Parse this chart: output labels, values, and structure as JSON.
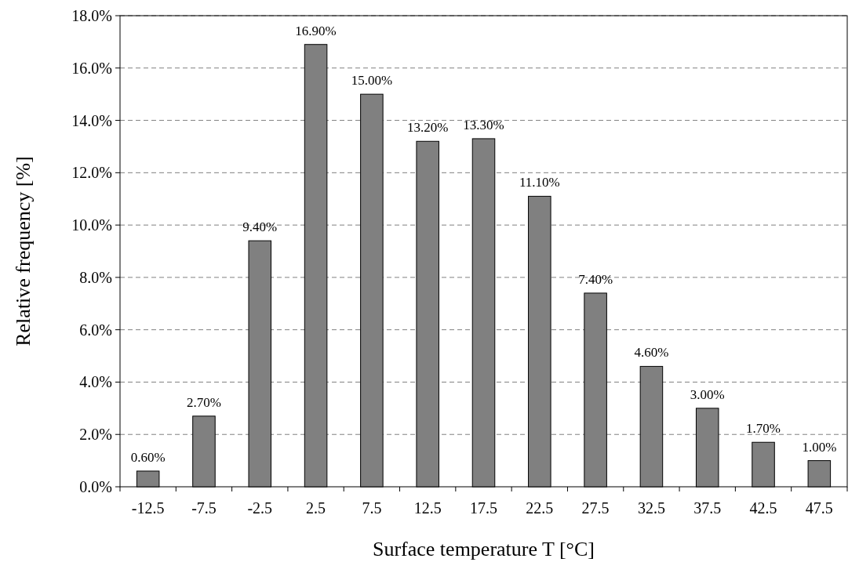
{
  "chart_data": {
    "type": "bar",
    "xlabel": "Surface temperature T [°C]",
    "ylabel": "Relative frequency [%]",
    "categories": [
      "-12.5",
      "-7.5",
      "-2.5",
      "2.5",
      "7.5",
      "12.5",
      "17.5",
      "22.5",
      "27.5",
      "32.5",
      "37.5",
      "42.5",
      "47.5"
    ],
    "values": [
      0.6,
      2.7,
      9.4,
      16.9,
      15.0,
      13.2,
      13.3,
      11.1,
      7.4,
      4.6,
      3.0,
      1.7,
      1.0
    ],
    "value_labels": [
      "0.60%",
      "2.70%",
      "9.40%",
      "16.90%",
      "15.00%",
      "13.20%",
      "13.30%",
      "11.10%",
      "7.40%",
      "4.60%",
      "3.00%",
      "1.70%",
      "1.00%"
    ],
    "color": "#808080",
    "ylim": [
      0,
      18
    ],
    "yticks": [
      {
        "value": 0,
        "label": "0.0%"
      },
      {
        "value": 2,
        "label": "2.0%"
      },
      {
        "value": 4,
        "label": "4.0%"
      },
      {
        "value": 6,
        "label": "6.0%"
      },
      {
        "value": 8,
        "label": "8.0%"
      },
      {
        "value": 10,
        "label": "10.0%"
      },
      {
        "value": 12,
        "label": "12.0%"
      },
      {
        "value": 14,
        "label": "14.0%"
      },
      {
        "value": 16,
        "label": "16.0%"
      },
      {
        "value": 18,
        "label": "18.0%"
      }
    ],
    "grid": "y"
  }
}
